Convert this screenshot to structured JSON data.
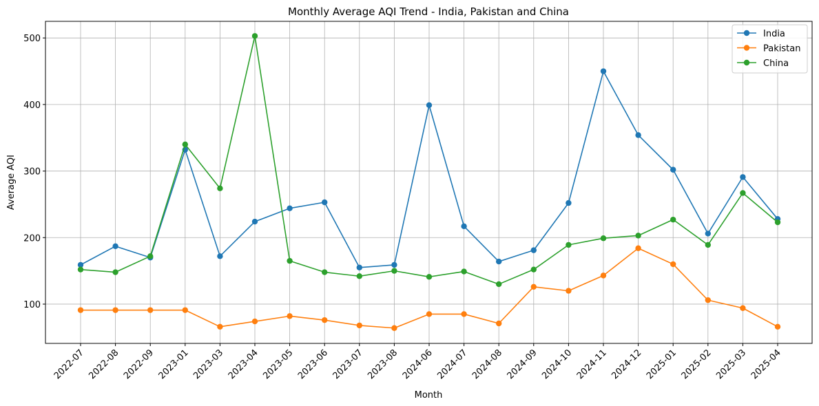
{
  "chart_data": {
    "type": "line",
    "title": "Monthly Average AQI Trend - India, Pakistan and China",
    "xlabel": "Month",
    "ylabel": "Average AQI",
    "categories": [
      "2022-07",
      "2022-08",
      "2022-09",
      "2023-01",
      "2023-03",
      "2023-04",
      "2023-05",
      "2023-06",
      "2023-07",
      "2023-08",
      "2024-06",
      "2024-07",
      "2024-08",
      "2024-09",
      "2024-10",
      "2024-11",
      "2024-12",
      "2025-01",
      "2025-02",
      "2025-03",
      "2025-04"
    ],
    "ylim": [
      41,
      525
    ],
    "yticks": [
      100,
      200,
      300,
      400,
      500
    ],
    "grid": true,
    "legend_position": "top-right",
    "series": [
      {
        "name": "India",
        "color": "#1f77b4",
        "values": [
          159,
          187,
          170,
          332,
          172,
          224,
          244,
          253,
          155,
          159,
          399,
          217,
          164,
          181,
          252,
          450,
          354,
          302,
          206,
          291,
          228
        ]
      },
      {
        "name": "Pakistan",
        "color": "#ff7f0e",
        "values": [
          91,
          91,
          91,
          91,
          66,
          74,
          82,
          76,
          68,
          64,
          85,
          85,
          71,
          126,
          120,
          143,
          184,
          160,
          106,
          94,
          66
        ]
      },
      {
        "name": "China",
        "color": "#2ca02c",
        "values": [
          152,
          148,
          172,
          340,
          274,
          503,
          165,
          148,
          142,
          150,
          141,
          149,
          130,
          152,
          189,
          199,
          203,
          227,
          189,
          267,
          223
        ]
      }
    ]
  }
}
